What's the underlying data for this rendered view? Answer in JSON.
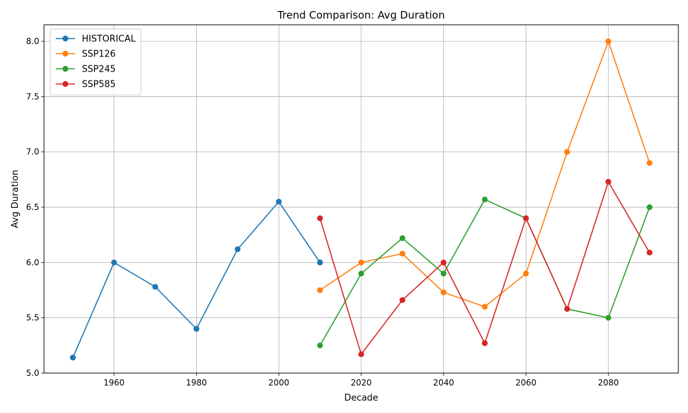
{
  "chart_data": {
    "type": "line",
    "title": "Trend Comparison: Avg Duration",
    "xlabel": "Decade",
    "ylabel": "Avg Duration",
    "xlim": [
      1943,
      2097
    ],
    "ylim": [
      5.0,
      8.15
    ],
    "xticks": [
      1960,
      1980,
      2000,
      2020,
      2040,
      2060,
      2080
    ],
    "yticks": [
      5.0,
      5.5,
      6.0,
      6.5,
      7.0,
      7.5,
      8.0
    ],
    "ytick_labels": [
      "5.0",
      "5.5",
      "6.0",
      "6.5",
      "7.0",
      "7.5",
      "8.0"
    ],
    "grid": true,
    "legend_position": "top-left",
    "series": [
      {
        "name": "HISTORICAL",
        "color": "#1f77b4",
        "x": [
          1950,
          1960,
          1970,
          1980,
          1990,
          2000,
          2010
        ],
        "y": [
          5.14,
          6.0,
          5.78,
          5.4,
          6.12,
          6.55,
          6.0
        ]
      },
      {
        "name": "SSP126",
        "color": "#ff7f0e",
        "x": [
          2010,
          2020,
          2030,
          2040,
          2050,
          2060,
          2070,
          2080,
          2090
        ],
        "y": [
          5.75,
          6.0,
          6.08,
          5.73,
          5.6,
          5.9,
          7.0,
          8.0,
          6.9
        ]
      },
      {
        "name": "SSP245",
        "color": "#2ca02c",
        "x": [
          2010,
          2020,
          2030,
          2040,
          2050,
          2060,
          2070,
          2080,
          2090
        ],
        "y": [
          5.25,
          5.9,
          6.22,
          5.9,
          6.57,
          6.4,
          5.58,
          5.5,
          6.5
        ]
      },
      {
        "name": "SSP585",
        "color": "#d62728",
        "x": [
          2010,
          2020,
          2030,
          2040,
          2050,
          2060,
          2070,
          2080,
          2090
        ],
        "y": [
          6.4,
          5.17,
          5.66,
          6.0,
          5.27,
          6.4,
          5.58,
          6.73,
          6.09
        ]
      }
    ]
  }
}
